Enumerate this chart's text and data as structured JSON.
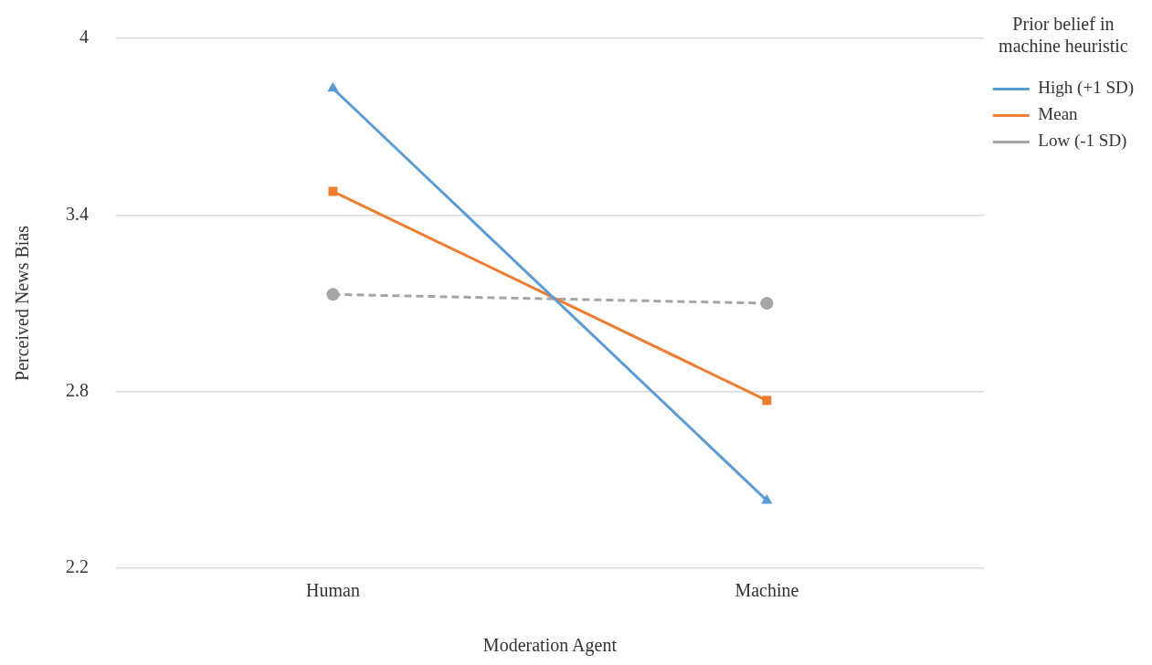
{
  "chart_data": {
    "type": "line",
    "xlabel": "Moderation Agent",
    "ylabel": "Perceived News Bias",
    "legend_title": "Prior belief in machine heuristic",
    "categories": [
      "Human",
      "Machine"
    ],
    "series": [
      {
        "name": "High (+1 SD)",
        "color": "#5b9bd5",
        "values": [
          3.83,
          2.43
        ],
        "marker": "triangle",
        "line_style": "solid"
      },
      {
        "name": "Mean",
        "color": "#ed7d31",
        "values": [
          3.48,
          2.77
        ],
        "marker": "square",
        "line_style": "solid"
      },
      {
        "name": "Low (-1 SD)",
        "color": "#a5a5a5",
        "values": [
          3.13,
          3.1
        ],
        "marker": "circle",
        "line_style": "dashed"
      }
    ],
    "ylim": [
      2.2,
      4
    ],
    "yticks": [
      2.2,
      2.8,
      3.4,
      4
    ],
    "grid": "y",
    "legend": "right"
  }
}
